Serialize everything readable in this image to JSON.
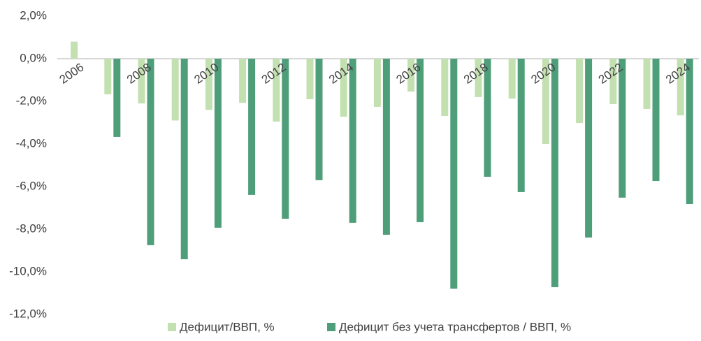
{
  "chart_data": {
    "type": "bar",
    "categories": [
      "2006",
      null,
      "2008",
      null,
      "2010",
      null,
      "2012",
      null,
      "2014",
      null,
      "2016",
      null,
      "2018",
      null,
      "2020",
      null,
      "2022",
      null,
      "2024"
    ],
    "series": [
      {
        "name": "Дефицит/ВВП, %",
        "color": "#c3e0b0",
        "values": [
          0.8,
          -1.67,
          -2.1,
          -2.9,
          -2.4,
          -2.07,
          -2.95,
          -1.9,
          -2.72,
          -2.26,
          -1.54,
          -2.69,
          -1.8,
          -1.87,
          -4.0,
          -3.02,
          -2.13,
          -2.36,
          -2.66
        ]
      },
      {
        "name": "Дефицит без учета трансфертов / ВВП, %",
        "color": "#4f9e7a",
        "values": [
          null,
          -3.67,
          -8.75,
          -9.41,
          -7.93,
          -6.39,
          -7.51,
          -5.7,
          -7.7,
          -8.26,
          -7.67,
          -10.79,
          -5.54,
          -6.26,
          -10.72,
          -8.39,
          -6.52,
          -5.74,
          -6.82
        ]
      }
    ],
    "ylim": [
      -12,
      2
    ],
    "yticks": [
      {
        "value": -12,
        "label": "-12,0%"
      },
      {
        "value": -10,
        "label": "-10,0%"
      },
      {
        "value": -8,
        "label": "-8,0%"
      },
      {
        "value": -6,
        "label": "-6,0%"
      },
      {
        "value": -4,
        "label": "-4,0%"
      },
      {
        "value": -2,
        "label": "-2,0%"
      },
      {
        "value": 0,
        "label": "0,0%"
      },
      {
        "value": 2,
        "label": "2,0%"
      }
    ],
    "grid": false,
    "legend": "bottom"
  }
}
